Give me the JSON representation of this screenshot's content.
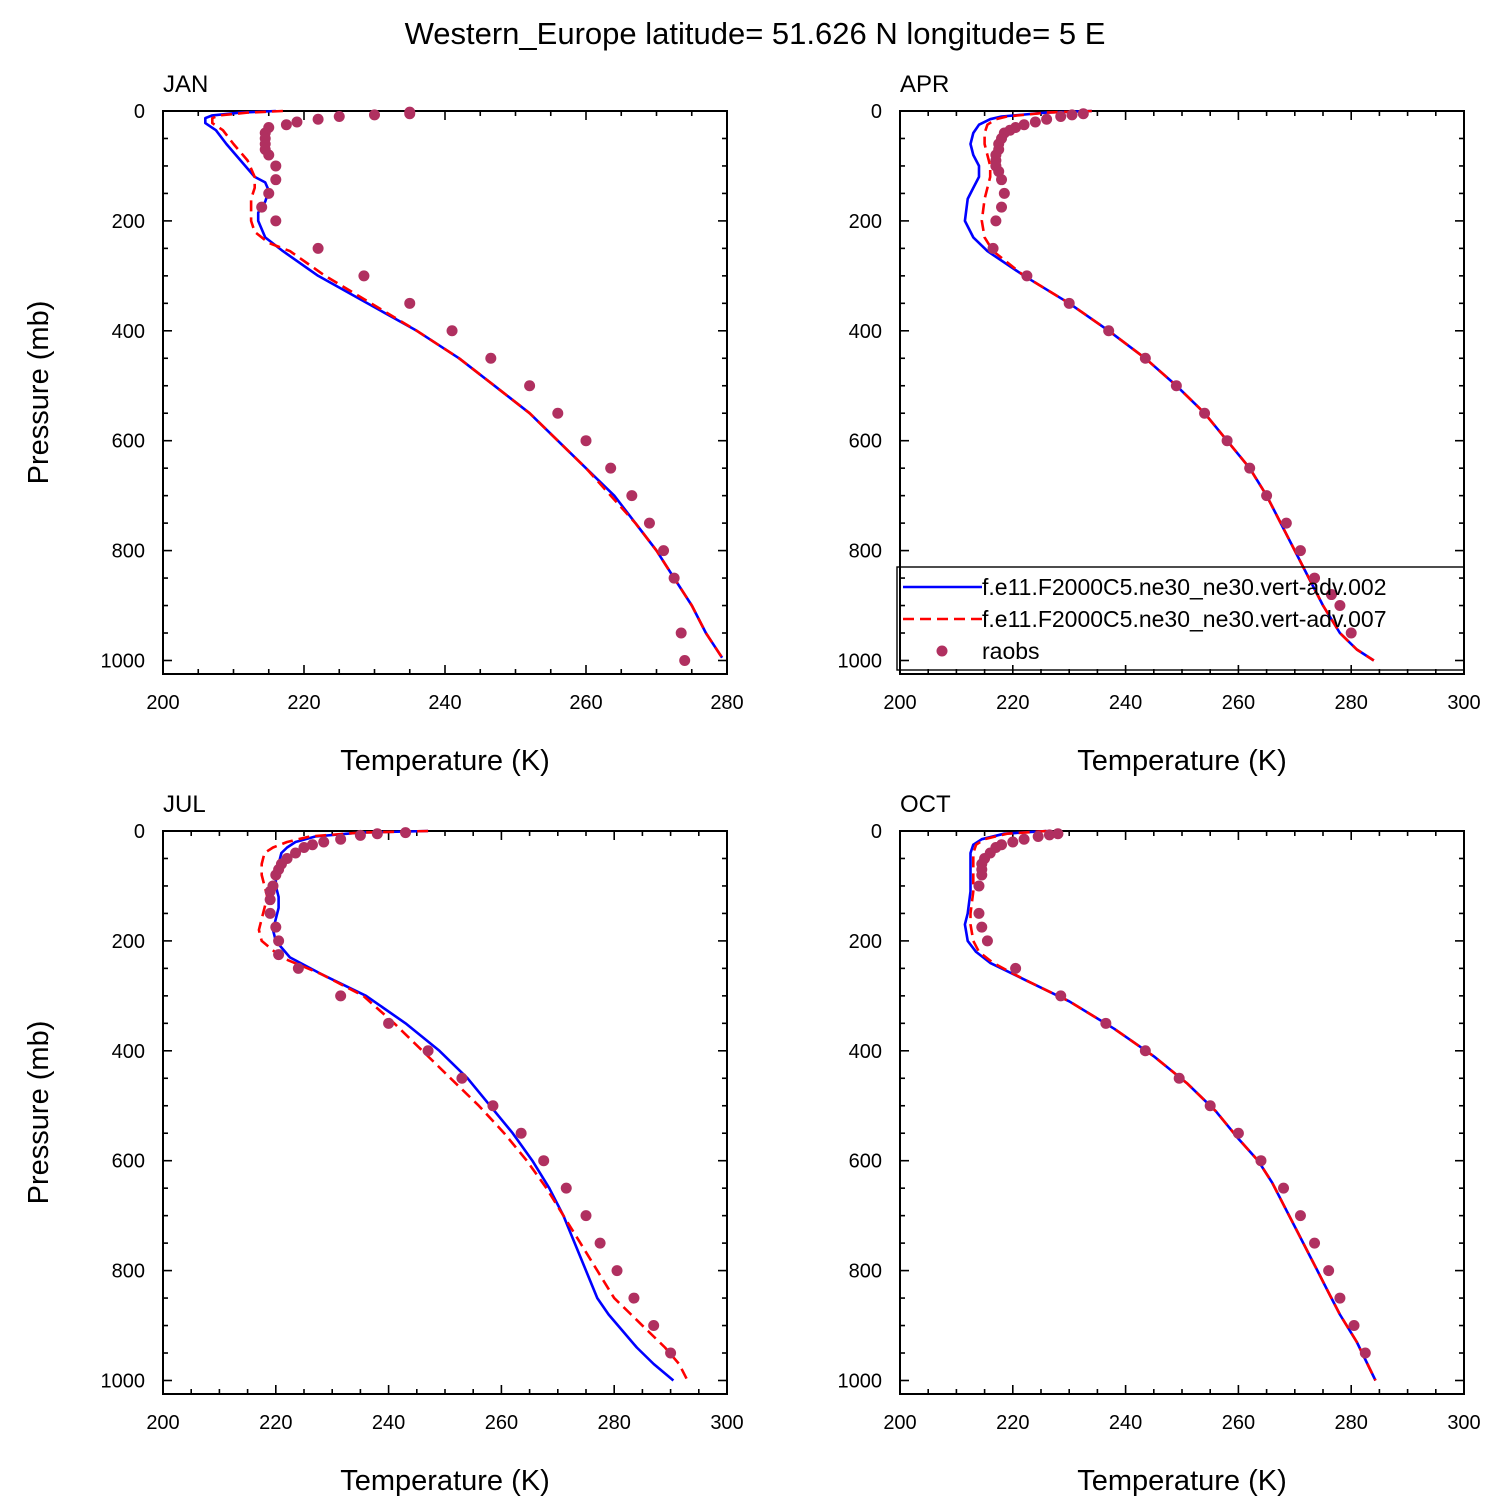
{
  "figure": {
    "title": "Western_Europe  latitude= 51.626 N longitude= 5 E"
  },
  "colors": {
    "model_002": "#0000ff",
    "model_007": "#ff0000",
    "raobs": "#b03060",
    "axes": "#000000"
  },
  "legend": {
    "placement": "APR panel, lower area",
    "entries": [
      {
        "label": "f.e11.F2000C5.ne30_ne30.vert-adv.002",
        "style": "solid line",
        "color": "#0000ff"
      },
      {
        "label": "f.e11.F2000C5.ne30_ne30.vert-adv.007",
        "style": "dashed line",
        "color": "#ff0000"
      },
      {
        "label": "raobs",
        "style": "dot",
        "color": "#b03060"
      }
    ]
  },
  "chart_data": [
    {
      "type": "line",
      "title": "JAN",
      "xlabel": "Temperature (K)",
      "ylabel": "Pressure (mb)",
      "xlim": [
        200,
        280
      ],
      "ylim": [
        1000,
        0
      ],
      "xticks": [
        200,
        220,
        240,
        260,
        280
      ],
      "yticks": [
        0,
        200,
        400,
        600,
        800,
        1000
      ],
      "grid": false,
      "series": [
        {
          "name": "f.e11.F2000C5.ne30_ne30.vert-adv.002",
          "style": "solid",
          "x": [
            216,
            211,
            207,
            206,
            206,
            207.5,
            209,
            211,
            213,
            214.5,
            215,
            214.5,
            213.5,
            213.5,
            214.5,
            217,
            222,
            229,
            236,
            242,
            247,
            252,
            256,
            260,
            264,
            267,
            270,
            272.5,
            275,
            277,
            279.3
          ],
          "y": [
            0,
            3,
            8,
            13,
            22,
            35,
            60,
            90,
            120,
            130,
            145,
            165,
            185,
            200,
            230,
            255,
            300,
            350,
            400,
            450,
            500,
            550,
            600,
            650,
            700,
            750,
            800,
            850,
            900,
            950,
            995
          ]
        },
        {
          "name": "f.e11.F2000C5.ne30_ne30.vert-adv.007",
          "style": "dashed",
          "x": [
            217,
            212,
            208,
            207,
            207,
            208.5,
            210,
            212,
            213,
            213,
            212.5,
            212.5,
            212.5,
            213,
            215,
            218,
            223,
            229.5,
            236,
            242,
            247,
            252,
            256,
            260,
            263.5,
            267,
            270,
            272.5,
            275,
            277,
            279.3
          ],
          "y": [
            0,
            3,
            8,
            13,
            22,
            35,
            60,
            90,
            120,
            140,
            160,
            180,
            200,
            220,
            240,
            255,
            300,
            350,
            400,
            450,
            500,
            550,
            600,
            650,
            700,
            750,
            800,
            850,
            900,
            950,
            995
          ]
        },
        {
          "name": "raobs",
          "style": "markers",
          "x": [
            235,
            235,
            230,
            225,
            222,
            219,
            217.5,
            215,
            214.5,
            214.5,
            214.5,
            214.5,
            215,
            216,
            216,
            215,
            214,
            216,
            222,
            228.5,
            235,
            241,
            246.5,
            252,
            256,
            260,
            263.5,
            266.5,
            269,
            271,
            272.5,
            273.5,
            274
          ],
          "y": [
            2,
            5,
            7,
            10,
            15,
            20,
            25,
            30,
            40,
            50,
            60,
            70,
            80,
            100,
            125,
            150,
            175,
            200,
            250,
            300,
            350,
            400,
            450,
            500,
            550,
            600,
            650,
            700,
            750,
            800,
            850,
            950,
            1000
          ]
        }
      ]
    },
    {
      "type": "line",
      "title": "APR",
      "xlabel": "Temperature (K)",
      "ylabel": "",
      "xlim": [
        200,
        300
      ],
      "ylim": [
        1000,
        0
      ],
      "xticks": [
        200,
        220,
        240,
        260,
        280,
        300
      ],
      "yticks": [
        0,
        200,
        400,
        600,
        800,
        1000
      ],
      "grid": false,
      "series": [
        {
          "name": "f.e11.F2000C5.ne30_ne30.vert-adv.002",
          "style": "solid",
          "x": [
            234,
            226,
            218,
            216,
            214,
            213,
            212.5,
            213,
            214,
            214,
            213,
            212,
            211.5,
            213,
            215.5,
            222,
            230,
            237,
            243.5,
            249,
            254,
            258,
            262,
            265,
            267.5,
            270,
            272.5,
            275,
            278,
            281,
            284
          ],
          "y": [
            0,
            3,
            10,
            15,
            25,
            40,
            60,
            80,
            100,
            120,
            140,
            160,
            200,
            230,
            255,
            300,
            350,
            400,
            450,
            500,
            550,
            600,
            650,
            700,
            750,
            800,
            850,
            900,
            950,
            980,
            1000
          ]
        },
        {
          "name": "f.e11.F2000C5.ne30_ne30.vert-adv.007",
          "style": "dashed",
          "x": [
            234,
            226,
            219,
            217,
            215.5,
            215,
            215,
            215.5,
            216,
            216,
            215.5,
            215,
            214.5,
            215,
            216.5,
            222,
            230,
            237,
            243.5,
            249,
            254,
            258,
            262,
            265,
            267.5,
            270,
            272.5,
            275,
            278,
            281,
            284
          ],
          "y": [
            0,
            3,
            10,
            15,
            25,
            40,
            60,
            80,
            100,
            120,
            140,
            160,
            200,
            230,
            255,
            300,
            350,
            400,
            450,
            500,
            550,
            600,
            650,
            700,
            750,
            800,
            850,
            900,
            950,
            980,
            1000
          ]
        },
        {
          "name": "raobs",
          "style": "markers",
          "x": [
            232.5,
            230.5,
            228.5,
            226,
            224,
            222,
            220.5,
            219.5,
            218.5,
            218,
            217.5,
            217.5,
            217,
            217,
            217,
            217.5,
            218,
            218.5,
            218,
            217,
            216.5,
            222.5,
            230,
            237,
            243.5,
            249,
            254,
            258,
            262,
            265,
            268.5,
            271,
            273.5,
            276.5,
            278,
            280
          ],
          "y": [
            5,
            7,
            10,
            15,
            20,
            25,
            30,
            35,
            40,
            50,
            60,
            70,
            80,
            90,
            100,
            110,
            125,
            150,
            175,
            200,
            250,
            300,
            350,
            400,
            450,
            500,
            550,
            600,
            650,
            700,
            750,
            800,
            850,
            880,
            900,
            950
          ]
        }
      ]
    },
    {
      "type": "line",
      "title": "JUL",
      "xlabel": "Temperature (K)",
      "ylabel": "Pressure (mb)",
      "xlim": [
        200,
        300
      ],
      "ylim": [
        1000,
        0
      ],
      "xticks": [
        200,
        220,
        240,
        260,
        280,
        300
      ],
      "yticks": [
        0,
        200,
        400,
        600,
        800,
        1000
      ],
      "grid": false,
      "series": [
        {
          "name": "f.e11.F2000C5.ne30_ne30.vert-adv.002",
          "style": "solid",
          "x": [
            247,
            235,
            227,
            223.5,
            222,
            221,
            220.5,
            220,
            220,
            220.5,
            220.5,
            220,
            219.5,
            220,
            222.5,
            228,
            236,
            243,
            249,
            254,
            258,
            262,
            265.5,
            268.5,
            271,
            273,
            275,
            277,
            279,
            281.5,
            284,
            287,
            290.5
          ],
          "y": [
            0,
            3,
            10,
            20,
            30,
            40,
            60,
            80,
            100,
            120,
            140,
            160,
            180,
            200,
            230,
            260,
            300,
            350,
            400,
            450,
            500,
            550,
            600,
            650,
            700,
            750,
            800,
            850,
            880,
            910,
            940,
            970,
            1000
          ]
        },
        {
          "name": "f.e11.F2000C5.ne30_ne30.vert-adv.007",
          "style": "dashed",
          "x": [
            247,
            235,
            226,
            222,
            219.5,
            218,
            217.5,
            217.5,
            218,
            218.5,
            218,
            217.5,
            217,
            217.5,
            221,
            228,
            235.5,
            241,
            246,
            251,
            256,
            260.5,
            264.5,
            268,
            271,
            274,
            277,
            280,
            283,
            286,
            289,
            291.5,
            293
          ],
          "y": [
            0,
            3,
            10,
            20,
            30,
            40,
            60,
            80,
            100,
            120,
            140,
            160,
            180,
            200,
            230,
            260,
            300,
            350,
            400,
            450,
            500,
            550,
            600,
            650,
            700,
            750,
            800,
            850,
            880,
            910,
            940,
            970,
            1000
          ]
        },
        {
          "name": "raobs",
          "style": "markers",
          "x": [
            243,
            238,
            235,
            231.5,
            228.5,
            226.5,
            225,
            223.5,
            222,
            221,
            220.5,
            220,
            219.5,
            219,
            219,
            219,
            220,
            220.5,
            220.5,
            224,
            231.5,
            240,
            247,
            253,
            258.5,
            263.5,
            267.5,
            271.5,
            275,
            277.5,
            280.5,
            283.5,
            287,
            290
          ],
          "y": [
            3,
            5,
            8,
            15,
            20,
            25,
            30,
            40,
            50,
            60,
            70,
            80,
            100,
            110,
            125,
            150,
            175,
            200,
            225,
            250,
            300,
            350,
            400,
            450,
            500,
            550,
            600,
            650,
            700,
            750,
            800,
            850,
            900,
            950
          ]
        }
      ]
    },
    {
      "type": "line",
      "title": "OCT",
      "xlabel": "Temperature (K)",
      "ylabel": "",
      "xlim": [
        200,
        300
      ],
      "ylim": [
        1000,
        0
      ],
      "xticks": [
        200,
        220,
        240,
        260,
        280,
        300
      ],
      "yticks": [
        0,
        200,
        400,
        600,
        800,
        1000
      ],
      "grid": false,
      "series": [
        {
          "name": "f.e11.F2000C5.ne30_ne30.vert-adv.002",
          "style": "solid",
          "x": [
            226,
            218.5,
            214.5,
            213,
            212.5,
            212.5,
            212.5,
            212.5,
            212,
            211.5,
            212,
            213.5,
            216,
            222,
            230,
            238,
            245,
            251,
            256,
            260,
            263.5,
            266,
            268,
            270,
            272,
            274,
            276,
            278,
            281,
            284.3
          ],
          "y": [
            0,
            5,
            15,
            25,
            40,
            60,
            80,
            110,
            150,
            170,
            200,
            220,
            240,
            270,
            310,
            360,
            410,
            460,
            510,
            560,
            600,
            640,
            680,
            720,
            760,
            800,
            840,
            880,
            930,
            1000
          ]
        },
        {
          "name": "f.e11.F2000C5.ne30_ne30.vert-adv.007",
          "style": "dashed",
          "x": [
            226,
            219,
            215,
            213.5,
            213,
            213,
            213,
            213,
            212.5,
            212.5,
            213,
            214,
            216.5,
            222,
            230,
            238,
            245,
            251,
            256,
            260,
            263.5,
            266,
            268,
            270,
            272,
            274,
            276,
            278,
            281,
            284.3
          ],
          "y": [
            0,
            5,
            15,
            25,
            40,
            60,
            80,
            110,
            150,
            170,
            200,
            220,
            240,
            270,
            310,
            360,
            410,
            460,
            510,
            560,
            600,
            640,
            680,
            720,
            760,
            800,
            840,
            880,
            930,
            1000
          ]
        },
        {
          "name": "raobs",
          "style": "markers",
          "x": [
            228,
            226.5,
            224.5,
            222,
            220,
            218,
            217,
            216,
            215,
            214.5,
            214.5,
            214.5,
            214,
            214,
            214.5,
            215.5,
            220.5,
            228.5,
            236.5,
            243.5,
            249.5,
            255,
            260,
            264,
            268,
            271,
            273.5,
            276,
            278,
            280.5,
            282.5
          ],
          "y": [
            5,
            7,
            10,
            15,
            20,
            25,
            30,
            40,
            50,
            60,
            70,
            80,
            100,
            150,
            175,
            200,
            250,
            300,
            350,
            400,
            450,
            500,
            550,
            600,
            650,
            700,
            750,
            800,
            850,
            900,
            950
          ]
        }
      ]
    }
  ]
}
